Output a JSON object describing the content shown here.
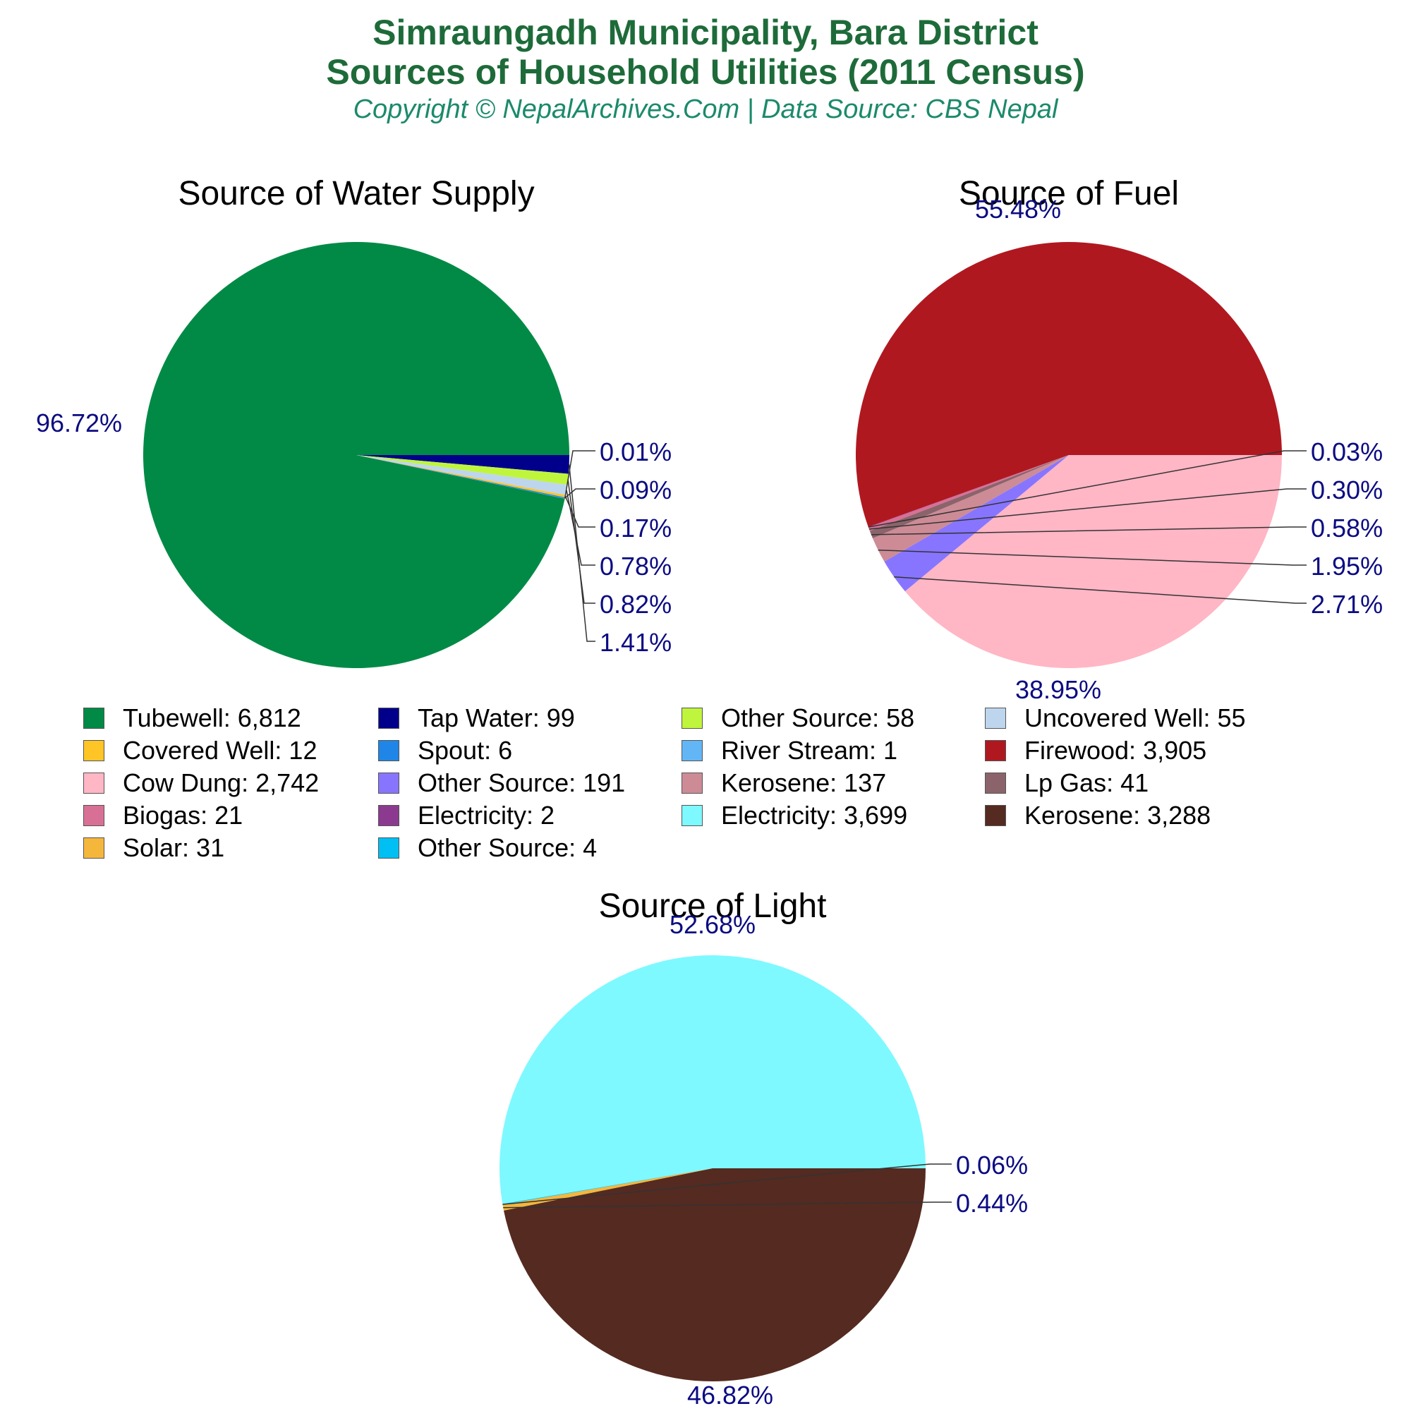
{
  "header": {
    "title_line1": "Simraungadh Municipality, Bara District",
    "title_line2": "Sources of Household Utilities (2011 Census)",
    "subtitle": "Copyright © NepalArchives.Com | Data Source: CBS Nepal"
  },
  "colors": {
    "label_text": "#0b0b82",
    "leader": "#333333",
    "title_text": "#1e6b3a",
    "subtitle_text": "#1b8a6b"
  },
  "chart_data": [
    {
      "type": "pie",
      "title": "Source of Water Supply",
      "slices": [
        {
          "name": "Tubewell",
          "value": 6812,
          "percent_label": "96.72%",
          "color": "#008a45"
        },
        {
          "name": "Tap Water",
          "value": 99,
          "percent_label": "1.41%",
          "color": "#00008b"
        },
        {
          "name": "Other Source",
          "value": 58,
          "percent_label": "0.82%",
          "color": "#bff53c"
        },
        {
          "name": "Uncovered Well",
          "value": 55,
          "percent_label": "0.78%",
          "color": "#bdd6ee"
        },
        {
          "name": "Covered Well",
          "value": 12,
          "percent_label": "0.17%",
          "color": "#ffc526"
        },
        {
          "name": "Spout",
          "value": 6,
          "percent_label": "0.09%",
          "color": "#1f86e8"
        },
        {
          "name": "River Stream",
          "value": 1,
          "percent_label": "0.01%",
          "color": "#63b6f6"
        }
      ]
    },
    {
      "type": "pie",
      "title": "Source of Fuel",
      "slices": [
        {
          "name": "Firewood",
          "value": 3905,
          "percent_label": "55.48%",
          "color": "#b01820"
        },
        {
          "name": "Cow Dung",
          "value": 2742,
          "percent_label": "38.95%",
          "color": "#ffb6c5"
        },
        {
          "name": "Other Source",
          "value": 191,
          "percent_label": "2.71%",
          "color": "#8875ff"
        },
        {
          "name": "Kerosene",
          "value": 137,
          "percent_label": "1.95%",
          "color": "#cd8b96"
        },
        {
          "name": "Lp Gas",
          "value": 41,
          "percent_label": "0.58%",
          "color": "#8b646b"
        },
        {
          "name": "Biogas",
          "value": 21,
          "percent_label": "0.30%",
          "color": "#d87095"
        },
        {
          "name": "Electricity",
          "value": 2,
          "percent_label": "0.03%",
          "color": "#8b3a8f"
        }
      ]
    },
    {
      "type": "pie",
      "title": "Source of Light",
      "slices": [
        {
          "name": "Electricity",
          "value": 3699,
          "percent_label": "52.68%",
          "color": "#7ef9ff"
        },
        {
          "name": "Kerosene",
          "value": 3288,
          "percent_label": "46.82%",
          "color": "#552a20"
        },
        {
          "name": "Solar",
          "value": 31,
          "percent_label": "0.44%",
          "color": "#f5b63c"
        },
        {
          "name": "Other Source",
          "value": 4,
          "percent_label": "0.06%",
          "color": "#00bff3"
        }
      ]
    }
  ],
  "legend": [
    {
      "label": "Tubewell: 6,812",
      "color": "#008a45"
    },
    {
      "label": "Tap Water: 99",
      "color": "#00008b"
    },
    {
      "label": "Other Source: 58",
      "color": "#bff53c"
    },
    {
      "label": "Uncovered Well: 55",
      "color": "#bdd6ee"
    },
    {
      "label": "Covered Well: 12",
      "color": "#ffc526"
    },
    {
      "label": "Spout: 6",
      "color": "#1f86e8"
    },
    {
      "label": "River Stream: 1",
      "color": "#63b6f6"
    },
    {
      "label": "Firewood: 3,905",
      "color": "#b01820"
    },
    {
      "label": "Cow Dung: 2,742",
      "color": "#ffb6c5"
    },
    {
      "label": "Other Source: 191",
      "color": "#8875ff"
    },
    {
      "label": "Kerosene: 137",
      "color": "#cd8b96"
    },
    {
      "label": "Lp Gas: 41",
      "color": "#8b646b"
    },
    {
      "label": "Biogas: 21",
      "color": "#d87095"
    },
    {
      "label": "Electricity: 2",
      "color": "#8b3a8f"
    },
    {
      "label": "Electricity: 3,699",
      "color": "#7ef9ff"
    },
    {
      "label": "Kerosene: 3,288",
      "color": "#552a20"
    },
    {
      "label": "Solar: 31",
      "color": "#f5b63c"
    },
    {
      "label": "Other Source: 4",
      "color": "#00bff3"
    }
  ]
}
